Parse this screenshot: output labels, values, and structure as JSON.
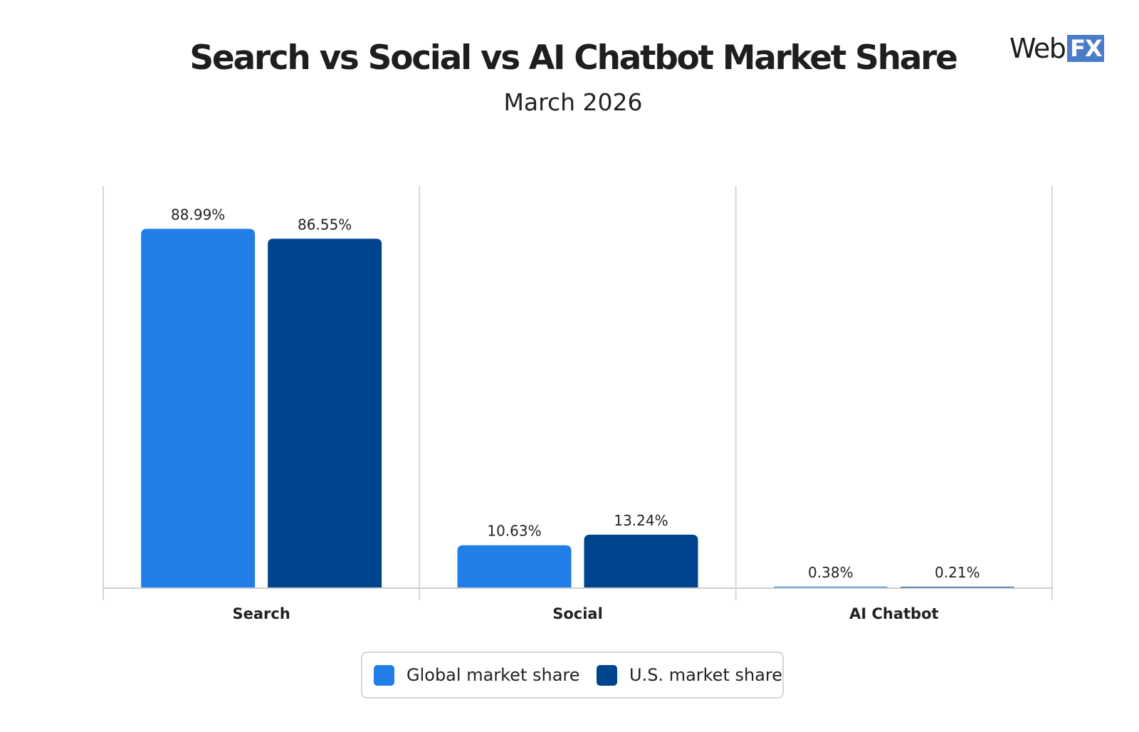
{
  "header": {
    "logo_text": "Web",
    "logo_box_text": "FX"
  },
  "chart_data": {
    "type": "bar",
    "title": "Search vs Social vs AI Chatbot Market Share",
    "subtitle": "March 2026",
    "categories": [
      "Search",
      "Social",
      "AI Chatbot"
    ],
    "series": [
      {
        "name": "Global market share",
        "color": "#217ee7",
        "values": [
          88.99,
          10.63,
          0.38
        ],
        "labels": [
          "88.99%",
          "10.63%",
          "0.38%"
        ]
      },
      {
        "name": "U.S. market share",
        "color": "#00448e",
        "values": [
          86.55,
          13.24,
          0.21
        ],
        "labels": [
          "86.55%",
          "13.24%",
          "0.21%"
        ]
      }
    ],
    "ylim": [
      0,
      100
    ],
    "grid": true,
    "legend_position": "bottom"
  }
}
